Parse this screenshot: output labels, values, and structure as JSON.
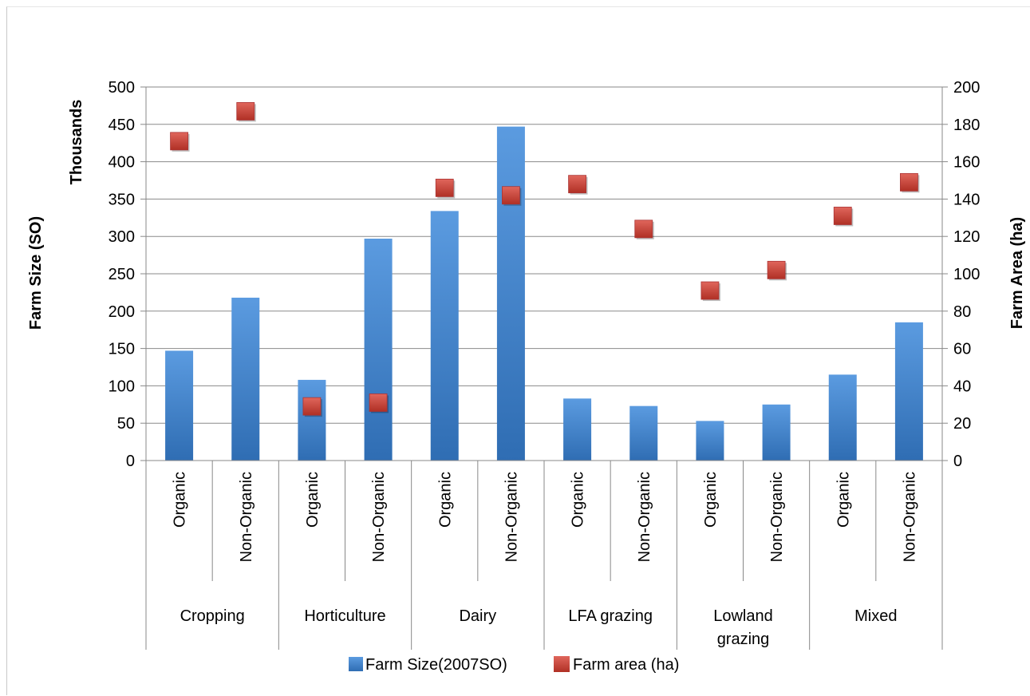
{
  "chart_data": {
    "type": "bar",
    "groups": [
      {
        "label": "Cropping",
        "label_lines": [
          "Cropping"
        ]
      },
      {
        "label": "Horticulture",
        "label_lines": [
          "Horticulture"
        ]
      },
      {
        "label": "Dairy",
        "label_lines": [
          "Dairy"
        ]
      },
      {
        "label": "LFA grazing",
        "label_lines": [
          "LFA grazing"
        ]
      },
      {
        "label": "Lowland grazing",
        "label_lines": [
          "Lowland",
          "grazing"
        ]
      },
      {
        "label": "Mixed",
        "label_lines": [
          "Mixed"
        ]
      }
    ],
    "categories": [
      "Organic",
      "Non-Organic",
      "Organic",
      "Non-Organic",
      "Organic",
      "Non-Organic",
      "Organic",
      "Non-Organic",
      "Organic",
      "Non-Organic",
      "Organic",
      "Non-Organic"
    ],
    "series": [
      {
        "name": "Farm Size(2007SO)",
        "type": "bar",
        "axis": "left",
        "color": "#4a8fd6",
        "values": [
          147,
          218,
          108,
          297,
          334,
          447,
          83,
          73,
          53,
          75,
          115,
          185
        ]
      },
      {
        "name": "Farm area (ha)",
        "type": "scatter",
        "axis": "right",
        "color": "#c0392b",
        "values": [
          171,
          187,
          29,
          31,
          146,
          142,
          148,
          124,
          91,
          102,
          131,
          149
        ]
      }
    ],
    "y_left": {
      "label": "Farm Size (SO)",
      "units_label": "Thousands",
      "min": 0,
      "max": 500,
      "step": 50
    },
    "y_right": {
      "label": "Farm Area (ha)",
      "min": 0,
      "max": 200,
      "step": 20
    },
    "grid": true,
    "legend_position": "bottom"
  }
}
